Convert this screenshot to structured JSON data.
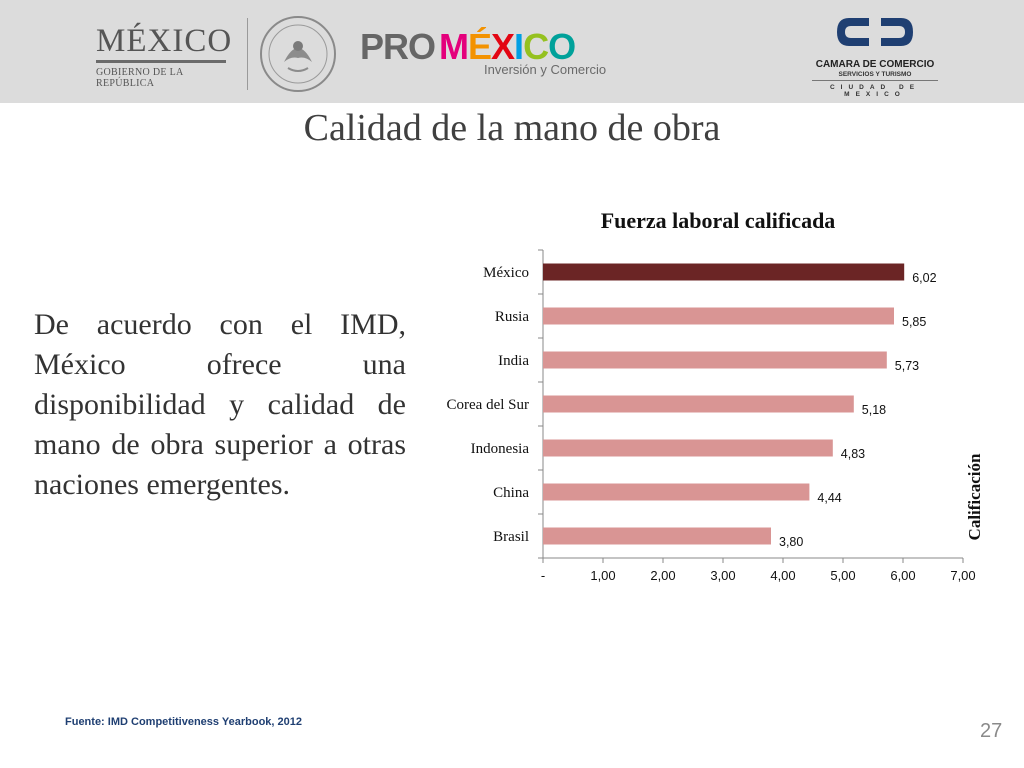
{
  "header": {
    "mexico_logo": {
      "word": "MÉXICO",
      "subtitle": "GOBIERNO DE LA REPÚBLICA"
    },
    "seal": {
      "icon": "coat-of-arms-seal"
    },
    "promexico_logo": {
      "pro": "PRO",
      "mexico": "MÉXICO",
      "tagline": "Inversión y Comercio"
    },
    "camara_logo": {
      "line1": "CAMARA DE COMERCIO",
      "line2": "SERVICIOS Y TURISMO",
      "line3": "CIUDAD DE MEXICO"
    }
  },
  "slide": {
    "title": "Calidad de la mano de obra",
    "body": "De acuerdo con el IMD, México ofrece una disponibilidad y calidad de mano de obra superior a otras naciones emergentes.",
    "source": "Fuente: IMD Competitiveness Yearbook, 2012",
    "page_number": "27"
  },
  "colors": {
    "highlight_bar": "#6b2525",
    "bar": "#d99594",
    "promexico_m": "#e4007c",
    "promexico_e": "#f39200",
    "promexico_x": "#e30613",
    "promexico_i": "#009fe3",
    "promexico_c": "#95c11f",
    "promexico_o": "#00a19a"
  },
  "chart_data": {
    "type": "bar",
    "orientation": "horizontal",
    "title": "Fuerza laboral calificada",
    "xlabel": "Calificación",
    "ylabel": "",
    "categories": [
      "México",
      "Rusia",
      "India",
      "Corea del Sur",
      "Indonesia",
      "China",
      "Brasil"
    ],
    "values": [
      6.02,
      5.85,
      5.73,
      5.18,
      4.83,
      4.44,
      3.8
    ],
    "value_labels": [
      "6,02",
      "5,85",
      "5,73",
      "5,18",
      "4,83",
      "4,44",
      "3,80"
    ],
    "xlim": [
      0,
      7
    ],
    "ticks": [
      "-",
      "1,00",
      "2,00",
      "3,00",
      "4,00",
      "5,00",
      "6,00",
      "7,00"
    ],
    "highlight": "México",
    "grid": false,
    "legend": "none"
  }
}
